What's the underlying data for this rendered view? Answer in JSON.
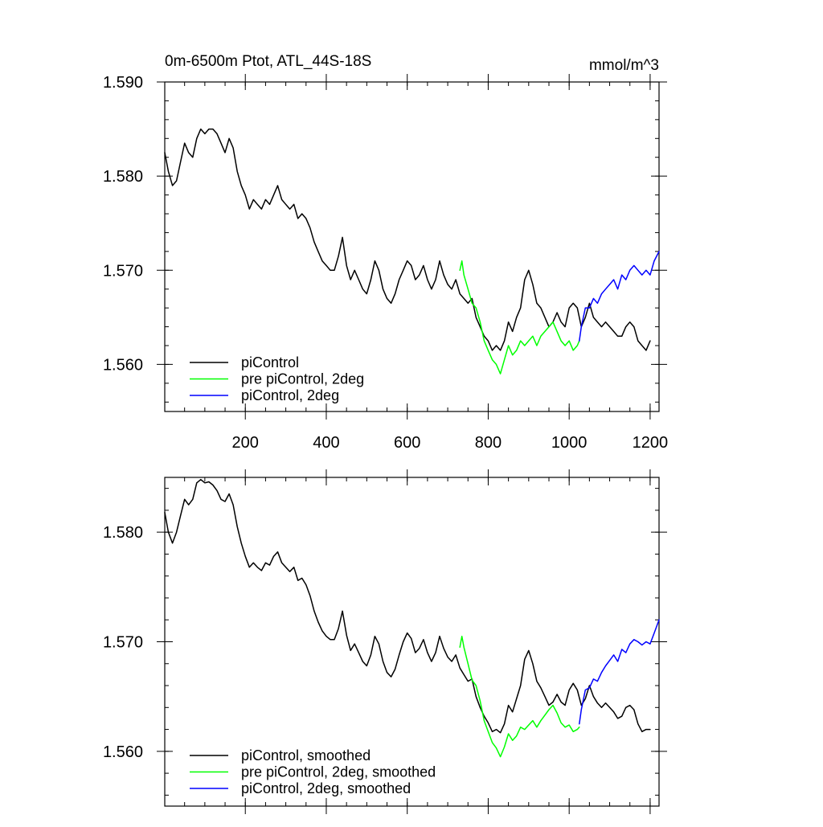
{
  "chart_data": [
    {
      "type": "line",
      "title": "0m-6500m Ptot, ATL_44S-18S",
      "units": "mmol/m^3",
      "xlim": [
        1,
        1222
      ],
      "ylim": [
        1.555,
        1.59
      ],
      "x_ticks": [
        200,
        400,
        600,
        800,
        1000,
        1200
      ],
      "x_tick_labels": [
        "200",
        "400",
        "600",
        "800",
        "1000",
        "1200"
      ],
      "y_ticks": [
        1.56,
        1.57,
        1.58,
        1.59
      ],
      "y_tick_labels": [
        "1.560",
        "1.570",
        "1.580",
        "1.590"
      ],
      "grid": false,
      "legend_position": "bottom-left",
      "series": [
        {
          "name": "piControl",
          "color": "#000000",
          "x": [
            1,
            10,
            20,
            30,
            40,
            50,
            60,
            70,
            80,
            90,
            100,
            110,
            120,
            130,
            140,
            150,
            160,
            170,
            180,
            190,
            200,
            210,
            220,
            230,
            240,
            250,
            260,
            270,
            280,
            290,
            300,
            310,
            320,
            330,
            340,
            350,
            360,
            370,
            380,
            390,
            400,
            410,
            420,
            430,
            440,
            450,
            460,
            470,
            480,
            490,
            500,
            510,
            520,
            530,
            540,
            550,
            560,
            570,
            580,
            590,
            600,
            610,
            620,
            630,
            640,
            650,
            660,
            670,
            680,
            690,
            700,
            710,
            720,
            730,
            740,
            750,
            760,
            770,
            780,
            790,
            800,
            810,
            820,
            830,
            840,
            850,
            860,
            870,
            880,
            890,
            900,
            910,
            920,
            930,
            940,
            950,
            960,
            970,
            980,
            990,
            1000,
            1010,
            1020,
            1030,
            1040,
            1050,
            1060,
            1070,
            1080,
            1090,
            1100,
            1110,
            1120,
            1130,
            1140,
            1150,
            1160,
            1170,
            1180,
            1190,
            1200
          ],
          "y": [
            1.5825,
            1.5805,
            1.579,
            1.5795,
            1.5815,
            1.5835,
            1.5825,
            1.582,
            1.584,
            1.585,
            1.5845,
            1.585,
            1.585,
            1.5845,
            1.5835,
            1.5825,
            1.584,
            1.583,
            1.5805,
            1.579,
            1.578,
            1.5765,
            1.5775,
            1.577,
            1.5765,
            1.5775,
            1.577,
            1.578,
            1.579,
            1.5775,
            1.577,
            1.5765,
            1.577,
            1.5755,
            1.576,
            1.5755,
            1.5745,
            1.573,
            1.572,
            1.571,
            1.5705,
            1.57,
            1.57,
            1.5715,
            1.5735,
            1.5705,
            1.569,
            1.57,
            1.569,
            1.568,
            1.5675,
            1.569,
            1.571,
            1.57,
            1.568,
            1.567,
            1.5665,
            1.5675,
            1.569,
            1.57,
            1.571,
            1.5705,
            1.569,
            1.5695,
            1.5705,
            1.569,
            1.568,
            1.569,
            1.571,
            1.5695,
            1.5685,
            1.568,
            1.569,
            1.5675,
            1.567,
            1.5665,
            1.567,
            1.565,
            1.564,
            1.563,
            1.5625,
            1.5615,
            1.562,
            1.5615,
            1.5625,
            1.5645,
            1.5635,
            1.565,
            1.566,
            1.569,
            1.57,
            1.5685,
            1.5665,
            1.566,
            1.565,
            1.564,
            1.5645,
            1.5655,
            1.5645,
            1.564,
            1.566,
            1.5665,
            1.566,
            1.564,
            1.565,
            1.5665,
            1.565,
            1.5645,
            1.564,
            1.5645,
            1.564,
            1.5635,
            1.563,
            1.563,
            1.564,
            1.5645,
            1.564,
            1.5625,
            1.562,
            1.5615,
            1.5625
          ]
        },
        {
          "name": "pre piControl, 2deg",
          "color": "#00ff00",
          "x": [
            730,
            735,
            740,
            750,
            760,
            770,
            780,
            790,
            800,
            810,
            820,
            830,
            840,
            850,
            860,
            870,
            880,
            890,
            900,
            910,
            920,
            930,
            940,
            950,
            960,
            970,
            980,
            990,
            1000,
            1010,
            1020,
            1025
          ],
          "y": [
            1.57,
            1.571,
            1.5695,
            1.568,
            1.5665,
            1.566,
            1.5645,
            1.5625,
            1.5615,
            1.5605,
            1.56,
            1.559,
            1.5605,
            1.562,
            1.561,
            1.5615,
            1.5625,
            1.562,
            1.5625,
            1.563,
            1.562,
            1.563,
            1.5635,
            1.564,
            1.5645,
            1.5635,
            1.5625,
            1.562,
            1.5625,
            1.5615,
            1.562,
            1.5625
          ]
        },
        {
          "name": "piControl, 2deg",
          "color": "#0000ff",
          "x": [
            1025,
            1030,
            1040,
            1050,
            1060,
            1070,
            1080,
            1090,
            1100,
            1110,
            1120,
            1130,
            1140,
            1150,
            1160,
            1170,
            1180,
            1190,
            1200,
            1210,
            1222
          ],
          "y": [
            1.5625,
            1.564,
            1.566,
            1.566,
            1.567,
            1.5665,
            1.5675,
            1.568,
            1.5685,
            1.569,
            1.568,
            1.5695,
            1.569,
            1.57,
            1.5705,
            1.57,
            1.5695,
            1.57,
            1.5695,
            1.571,
            1.572
          ]
        }
      ]
    },
    {
      "type": "line",
      "xlim": [
        1,
        1222
      ],
      "ylim": [
        1.555,
        1.585
      ],
      "x_ticks": [
        200,
        400,
        600,
        800,
        1000,
        1200
      ],
      "x_tick_labels": [],
      "y_ticks": [
        1.56,
        1.57,
        1.58
      ],
      "y_tick_labels": [
        "1.560",
        "1.570",
        "1.580"
      ],
      "grid": false,
      "legend_position": "bottom-left",
      "series": [
        {
          "name": "piControl, smoothed",
          "color": "#000000",
          "x": [
            1,
            10,
            20,
            30,
            40,
            50,
            60,
            70,
            80,
            90,
            100,
            110,
            120,
            130,
            140,
            150,
            160,
            170,
            180,
            190,
            200,
            210,
            220,
            230,
            240,
            250,
            260,
            270,
            280,
            290,
            300,
            310,
            320,
            330,
            340,
            350,
            360,
            370,
            380,
            390,
            400,
            410,
            420,
            430,
            440,
            450,
            460,
            470,
            480,
            490,
            500,
            510,
            520,
            530,
            540,
            550,
            560,
            570,
            580,
            590,
            600,
            610,
            620,
            630,
            640,
            650,
            660,
            670,
            680,
            690,
            700,
            710,
            720,
            730,
            740,
            750,
            760,
            770,
            780,
            790,
            800,
            810,
            820,
            830,
            840,
            850,
            860,
            870,
            880,
            890,
            900,
            910,
            920,
            930,
            940,
            950,
            960,
            970,
            980,
            990,
            1000,
            1010,
            1020,
            1030,
            1040,
            1050,
            1060,
            1070,
            1080,
            1090,
            1100,
            1110,
            1120,
            1130,
            1140,
            1150,
            1160,
            1170,
            1180,
            1190,
            1200
          ],
          "y": [
            1.5818,
            1.58,
            1.579,
            1.58,
            1.5815,
            1.583,
            1.5825,
            1.583,
            1.5845,
            1.5848,
            1.5845,
            1.5846,
            1.5843,
            1.5838,
            1.583,
            1.5828,
            1.5835,
            1.5825,
            1.5805,
            1.579,
            1.5778,
            1.5768,
            1.5772,
            1.5768,
            1.5765,
            1.5772,
            1.577,
            1.5778,
            1.5782,
            1.5772,
            1.5768,
            1.5764,
            1.5768,
            1.5756,
            1.5758,
            1.5752,
            1.5742,
            1.5728,
            1.5718,
            1.571,
            1.5705,
            1.5702,
            1.5702,
            1.5712,
            1.5728,
            1.5706,
            1.5692,
            1.5698,
            1.569,
            1.5682,
            1.5678,
            1.5688,
            1.5705,
            1.5698,
            1.5682,
            1.5672,
            1.5668,
            1.5675,
            1.5688,
            1.57,
            1.5708,
            1.5703,
            1.569,
            1.5694,
            1.5702,
            1.569,
            1.5682,
            1.569,
            1.5705,
            1.5694,
            1.5686,
            1.5682,
            1.5688,
            1.5676,
            1.567,
            1.5664,
            1.5666,
            1.565,
            1.564,
            1.5632,
            1.5626,
            1.5618,
            1.562,
            1.5617,
            1.5625,
            1.5642,
            1.5636,
            1.5648,
            1.566,
            1.5684,
            1.5692,
            1.568,
            1.5664,
            1.5658,
            1.565,
            1.5642,
            1.5645,
            1.5652,
            1.5645,
            1.5642,
            1.5656,
            1.5662,
            1.5656,
            1.5642,
            1.5648,
            1.566,
            1.565,
            1.5644,
            1.564,
            1.5644,
            1.564,
            1.5636,
            1.563,
            1.5632,
            1.564,
            1.5642,
            1.5638,
            1.5625,
            1.5618,
            1.562,
            1.562
          ]
        },
        {
          "name": "pre piControl, 2deg, smoothed",
          "color": "#00ff00",
          "x": [
            730,
            735,
            740,
            750,
            760,
            770,
            780,
            790,
            800,
            810,
            820,
            830,
            840,
            850,
            860,
            870,
            880,
            890,
            900,
            910,
            920,
            930,
            940,
            950,
            960,
            970,
            980,
            990,
            1000,
            1010,
            1020,
            1025
          ],
          "y": [
            1.5695,
            1.5705,
            1.5695,
            1.568,
            1.5665,
            1.566,
            1.5646,
            1.5628,
            1.5618,
            1.5608,
            1.5603,
            1.5595,
            1.5604,
            1.5616,
            1.561,
            1.5614,
            1.5622,
            1.562,
            1.5624,
            1.5628,
            1.5622,
            1.5628,
            1.5633,
            1.5638,
            1.5642,
            1.5635,
            1.5626,
            1.5622,
            1.5624,
            1.5618,
            1.562,
            1.5622
          ]
        },
        {
          "name": "piControl, 2deg, smoothed",
          "color": "#0000ff",
          "x": [
            1025,
            1030,
            1040,
            1050,
            1060,
            1070,
            1080,
            1090,
            1100,
            1110,
            1120,
            1130,
            1140,
            1150,
            1160,
            1170,
            1180,
            1190,
            1200,
            1210,
            1222
          ],
          "y": [
            1.5625,
            1.5638,
            1.5656,
            1.5658,
            1.5666,
            1.5664,
            1.5672,
            1.5678,
            1.5683,
            1.5688,
            1.5682,
            1.5693,
            1.569,
            1.5698,
            1.5702,
            1.57,
            1.5697,
            1.57,
            1.5698,
            1.5708,
            1.572
          ]
        }
      ]
    }
  ]
}
